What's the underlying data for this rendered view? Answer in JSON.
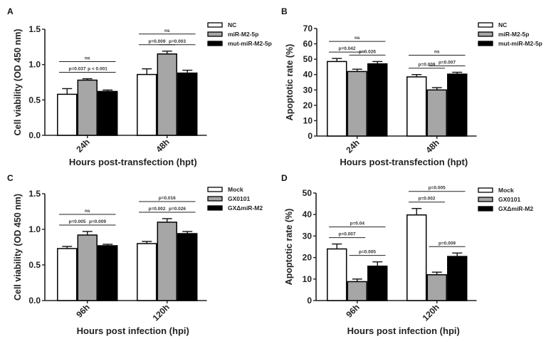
{
  "colors": {
    "fill_0": "#ffffff",
    "fill_1": "#a6a6a6",
    "fill_2": "#000000",
    "stroke": "#000000"
  },
  "chart_data": [
    {
      "panel": "A",
      "type": "bar",
      "ylabel": "Cell viability (OD 450 nm)",
      "xlabel": "Hours post-transfection (hpt)",
      "categories": [
        "24h",
        "48h"
      ],
      "ylim": [
        0,
        1.5
      ],
      "yticks": [
        "0.0",
        "0.5",
        "1.0",
        "1.5"
      ],
      "ytick_values": [
        0,
        0.5,
        1.0,
        1.5
      ],
      "legend_position": "top-right",
      "series": [
        {
          "name": "NC",
          "values": [
            0.58,
            0.86
          ],
          "errors": [
            0.08,
            0.08
          ]
        },
        {
          "name": "miR-M2-5p",
          "values": [
            0.78,
            1.15
          ],
          "errors": [
            0.02,
            0.04
          ]
        },
        {
          "name": "mut-miR-M2-5p",
          "values": [
            0.62,
            0.88
          ],
          "errors": [
            0.02,
            0.04
          ]
        }
      ],
      "annotations": [
        {
          "category": 0,
          "from": 0,
          "to": 1,
          "label": "p=0.037"
        },
        {
          "category": 0,
          "from": 1,
          "to": 2,
          "label": "p < 0.001"
        },
        {
          "category": 0,
          "from": 0,
          "to": 2,
          "label": "ns"
        },
        {
          "category": 1,
          "from": 0,
          "to": 1,
          "label": "p=0.009"
        },
        {
          "category": 1,
          "from": 1,
          "to": 2,
          "label": "p=0.003"
        },
        {
          "category": 1,
          "from": 0,
          "to": 2,
          "label": "ns"
        }
      ]
    },
    {
      "panel": "B",
      "type": "bar",
      "ylabel": "Apoptotic rate (%)",
      "xlabel": "Hours post-transfection (hpt)",
      "categories": [
        "24h",
        "48h"
      ],
      "ylim": [
        0,
        70
      ],
      "yticks": [
        "0",
        "10",
        "20",
        "30",
        "40",
        "50",
        "60",
        "70"
      ],
      "ytick_values": [
        0,
        10,
        20,
        30,
        40,
        50,
        60,
        70
      ],
      "legend_position": "top-right",
      "series": [
        {
          "name": "NC",
          "values": [
            48.5,
            38.5
          ],
          "errors": [
            2.0,
            1.5
          ]
        },
        {
          "name": "miR-M2-5p",
          "values": [
            42.0,
            30.0
          ],
          "errors": [
            1.5,
            1.5
          ]
        },
        {
          "name": "mut-miR-M2-5p",
          "values": [
            47.0,
            40.3
          ],
          "errors": [
            1.5,
            1.2
          ]
        }
      ],
      "annotations": [
        {
          "category": 0,
          "from": 0,
          "to": 1,
          "label": "p=0.042"
        },
        {
          "category": 0,
          "from": 1,
          "to": 2,
          "label": "p=0.026"
        },
        {
          "category": 0,
          "from": 0,
          "to": 2,
          "label": "ns"
        },
        {
          "category": 1,
          "from": 0,
          "to": 1,
          "label": "p=0.009"
        },
        {
          "category": 1,
          "from": 1,
          "to": 2,
          "label": "p=0.007"
        },
        {
          "category": 1,
          "from": 0,
          "to": 2,
          "label": "ns"
        }
      ]
    },
    {
      "panel": "C",
      "type": "bar",
      "ylabel": "Cell viability (OD 450 nm)",
      "xlabel": "Hours post infection (hpi)",
      "categories": [
        "96h",
        "120h"
      ],
      "ylim": [
        0,
        1.5
      ],
      "yticks": [
        "0.0",
        "0.5",
        "1.0",
        "1.5"
      ],
      "ytick_values": [
        0,
        0.5,
        1.0,
        1.5
      ],
      "legend_position": "top-right",
      "series": [
        {
          "name": "Mock",
          "values": [
            0.73,
            0.8
          ],
          "errors": [
            0.03,
            0.03
          ]
        },
        {
          "name": "GX0101",
          "values": [
            0.92,
            1.1
          ],
          "errors": [
            0.05,
            0.05
          ]
        },
        {
          "name": "GXΔmiR-M2",
          "values": [
            0.77,
            0.94
          ],
          "errors": [
            0.02,
            0.03
          ]
        }
      ],
      "annotations": [
        {
          "category": 0,
          "from": 0,
          "to": 1,
          "label": "p=0.005"
        },
        {
          "category": 0,
          "from": 1,
          "to": 2,
          "label": "p=0.009"
        },
        {
          "category": 0,
          "from": 0,
          "to": 2,
          "label": "ns"
        },
        {
          "category": 1,
          "from": 0,
          "to": 1,
          "label": "p=0.002"
        },
        {
          "category": 1,
          "from": 1,
          "to": 2,
          "label": "p=0.026"
        },
        {
          "category": 1,
          "from": 0,
          "to": 2,
          "label": "p=0.016"
        }
      ]
    },
    {
      "panel": "D",
      "type": "bar",
      "ylabel": "Apoptotic rate (%)",
      "xlabel": "Hours post infection (hpi)",
      "categories": [
        "96h",
        "120h"
      ],
      "ylim": [
        0,
        50
      ],
      "yticks": [
        "0",
        "10",
        "20",
        "30",
        "40",
        "50"
      ],
      "ytick_values": [
        0,
        10,
        20,
        30,
        40,
        50
      ],
      "legend_position": "top-right",
      "series": [
        {
          "name": "Mock",
          "values": [
            24.0,
            39.8
          ],
          "errors": [
            2.3,
            3.0
          ]
        },
        {
          "name": "GX0101",
          "values": [
            8.8,
            12.0
          ],
          "errors": [
            1.2,
            1.2
          ]
        },
        {
          "name": "GXΔmiR-M2",
          "values": [
            16.0,
            20.5
          ],
          "errors": [
            2.0,
            1.6
          ]
        }
      ],
      "annotations": [
        {
          "category": 0,
          "from": 0,
          "to": 1,
          "label": "p=0.007"
        },
        {
          "category": 0,
          "from": 1,
          "to": 2,
          "label": "p=0.005"
        },
        {
          "category": 0,
          "from": 0,
          "to": 2,
          "label": "p=0.04"
        },
        {
          "category": 1,
          "from": 0,
          "to": 1,
          "label": "p=0.002"
        },
        {
          "category": 1,
          "from": 1,
          "to": 2,
          "label": "p=0.009"
        },
        {
          "category": 1,
          "from": 0,
          "to": 2,
          "label": "p=0.005"
        }
      ]
    }
  ]
}
